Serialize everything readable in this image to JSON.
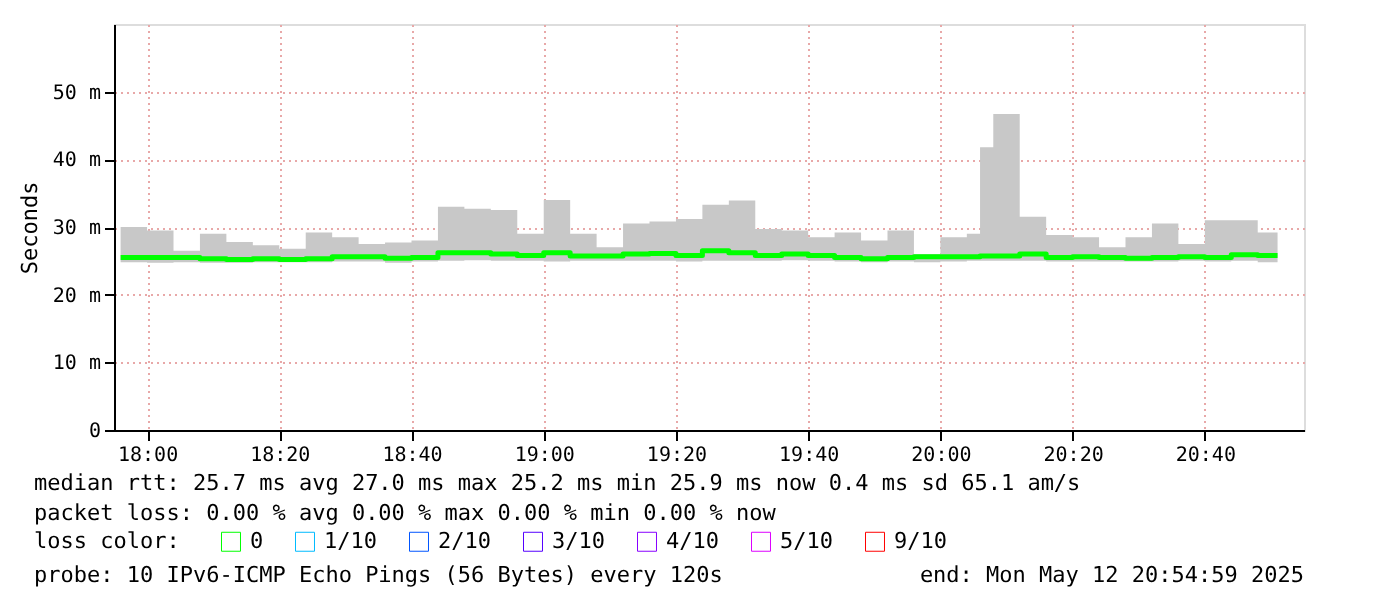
{
  "chart_data": {
    "type": "step",
    "ylabel": "Seconds",
    "x": [
      "2025-05-12T17:56",
      "2025-05-12T18:00",
      "2025-05-12T18:04",
      "2025-05-12T18:08",
      "2025-05-12T18:12",
      "2025-05-12T18:16",
      "2025-05-12T18:20",
      "2025-05-12T18:24",
      "2025-05-12T18:28",
      "2025-05-12T18:32",
      "2025-05-12T18:36",
      "2025-05-12T18:40",
      "2025-05-12T18:44",
      "2025-05-12T18:48",
      "2025-05-12T18:52",
      "2025-05-12T18:56",
      "2025-05-12T19:00",
      "2025-05-12T19:04",
      "2025-05-12T19:08",
      "2025-05-12T19:12",
      "2025-05-12T19:16",
      "2025-05-12T19:20",
      "2025-05-12T19:24",
      "2025-05-12T19:28",
      "2025-05-12T19:32",
      "2025-05-12T19:36",
      "2025-05-12T19:40",
      "2025-05-12T19:44",
      "2025-05-12T19:48",
      "2025-05-12T19:52",
      "2025-05-12T19:56",
      "2025-05-12T20:00",
      "2025-05-12T20:04",
      "2025-05-12T20:06",
      "2025-05-12T20:08",
      "2025-05-12T20:12",
      "2025-05-12T20:16",
      "2025-05-12T20:20",
      "2025-05-12T20:24",
      "2025-05-12T20:28",
      "2025-05-12T20:32",
      "2025-05-12T20:36",
      "2025-05-12T20:40",
      "2025-05-12T20:44",
      "2025-05-12T20:48",
      "2025-05-12T20:51"
    ],
    "series": [
      {
        "name": "0",
        "color": "#00ff00",
        "values": [
          25.5,
          25.5,
          25.5,
          25.3,
          25.2,
          25.3,
          25.2,
          25.3,
          25.6,
          25.6,
          25.4,
          25.5,
          26.2,
          26.2,
          26,
          25.8,
          26.2,
          25.7,
          25.7,
          26,
          26.1,
          25.8,
          26.5,
          26.2,
          25.8,
          26,
          25.8,
          25.5,
          25.3,
          25.5,
          25.6,
          25.6,
          25.6,
          25.7,
          25.7,
          26,
          25.5,
          25.6,
          25.5,
          25.4,
          25.5,
          25.6,
          25.5,
          25.9,
          25.8,
          25.8
        ],
        "lower": [
          24.8,
          24.7,
          24.8,
          24.7,
          24.7,
          24.8,
          24.8,
          24.8,
          24.9,
          24.9,
          24.7,
          24.9,
          25,
          25.1,
          25,
          25,
          24.9,
          25,
          25,
          25,
          25,
          24.9,
          25,
          25,
          25,
          25.1,
          25,
          24.9,
          24.8,
          24.9,
          24.8,
          24.9,
          25,
          25,
          25,
          25,
          24.9,
          24.9,
          24.9,
          24.9,
          24.9,
          25,
          24.9,
          25,
          24.8,
          24.8
        ],
        "upper": [
          30,
          29.5,
          26.5,
          29,
          27.8,
          27.3,
          26.8,
          29.2,
          28.5,
          27.5,
          27.7,
          28,
          33,
          32.7,
          32.5,
          29,
          34,
          29,
          27,
          30.5,
          30.8,
          31.2,
          33.3,
          33.9,
          29.7,
          29.5,
          28.5,
          29.2,
          28,
          29.5,
          26,
          28.5,
          29,
          41.8,
          46.7,
          31.5,
          28.8,
          28.5,
          27,
          28.5,
          30.5,
          27.5,
          31,
          31,
          29.2,
          29.2
        ]
      },
      {
        "name": "1/10",
        "color": "#00bbff",
        "values": [
          null,
          null,
          null,
          null,
          null,
          null,
          null,
          null,
          null,
          null,
          null,
          null,
          null,
          null,
          null,
          null,
          null,
          null,
          null,
          null,
          null,
          null,
          null,
          null,
          null,
          null,
          null,
          null,
          null,
          null,
          null,
          null,
          null,
          null,
          null,
          null,
          null,
          null,
          null,
          null,
          null,
          null,
          null,
          null,
          null,
          null
        ]
      },
      {
        "name": "2/10",
        "color": "#0055ff",
        "values": [
          null,
          null,
          null,
          null,
          null,
          null,
          null,
          null,
          null,
          null,
          null,
          null,
          null,
          null,
          null,
          null,
          null,
          null,
          null,
          null,
          null,
          null,
          null,
          null,
          null,
          null,
          null,
          null,
          null,
          null,
          null,
          null,
          null,
          null,
          null,
          null,
          null,
          null,
          null,
          null,
          null,
          null,
          null,
          null,
          null,
          null
        ]
      },
      {
        "name": "3/10",
        "color": "#5500ff",
        "values": [
          null,
          null,
          null,
          null,
          null,
          null,
          null,
          null,
          null,
          null,
          null,
          null,
          null,
          null,
          null,
          null,
          null,
          null,
          null,
          null,
          null,
          null,
          null,
          null,
          null,
          null,
          null,
          null,
          null,
          null,
          null,
          null,
          null,
          null,
          null,
          null,
          null,
          null,
          null,
          null,
          null,
          null,
          null,
          null,
          null,
          null
        ]
      },
      {
        "name": "4/10",
        "color": "#8800ff",
        "values": [
          null,
          null,
          null,
          null,
          null,
          null,
          null,
          null,
          null,
          null,
          null,
          null,
          null,
          null,
          null,
          null,
          null,
          null,
          null,
          null,
          null,
          null,
          null,
          null,
          null,
          null,
          null,
          null,
          null,
          null,
          null,
          null,
          null,
          null,
          null,
          null,
          null,
          null,
          null,
          null,
          null,
          null,
          null,
          null,
          null,
          null
        ]
      },
      {
        "name": "5/10",
        "color": "#dd00ff",
        "values": [
          null,
          null,
          null,
          null,
          null,
          null,
          null,
          null,
          null,
          null,
          null,
          null,
          null,
          null,
          null,
          null,
          null,
          null,
          null,
          null,
          null,
          null,
          null,
          null,
          null,
          null,
          null,
          null,
          null,
          null,
          null,
          null,
          null,
          null,
          null,
          null,
          null,
          null,
          null,
          null,
          null,
          null,
          null,
          null,
          null,
          null
        ]
      },
      {
        "name": "9/10",
        "color": "#ff0000",
        "values": [
          null,
          null,
          null,
          null,
          null,
          null,
          null,
          null,
          null,
          null,
          null,
          null,
          null,
          null,
          null,
          null,
          null,
          null,
          null,
          null,
          null,
          null,
          null,
          null,
          null,
          null,
          null,
          null,
          null,
          null,
          null,
          null,
          null,
          null,
          null,
          null,
          null,
          null,
          null,
          null,
          null,
          null,
          null,
          null,
          null,
          null
        ]
      }
    ],
    "legend": "bottom",
    "legend_title": "loss color:",
    "xlim": [
      "2025-05-12T17:55",
      "2025-05-12T20:55"
    ],
    "xticks": [
      {
        "value": "2025-05-12T18:00",
        "label": "18:00"
      },
      {
        "value": "2025-05-12T18:20",
        "label": "18:20"
      },
      {
        "value": "2025-05-12T18:40",
        "label": "18:40"
      },
      {
        "value": "2025-05-12T19:00",
        "label": "19:00"
      },
      {
        "value": "2025-05-12T19:20",
        "label": "19:20"
      },
      {
        "value": "2025-05-12T19:40",
        "label": "19:40"
      },
      {
        "value": "2025-05-12T20:00",
        "label": "20:00"
      },
      {
        "value": "2025-05-12T20:20",
        "label": "20:20"
      },
      {
        "value": "2025-05-12T20:40",
        "label": "20:40"
      }
    ],
    "ylim": [
      0,
      60
    ],
    "yticks": [
      0,
      {
        "value": 10,
        "label": "10 m"
      },
      {
        "value": 20,
        "label": "20 m"
      },
      {
        "value": 30,
        "label": "30 m"
      },
      {
        "value": 40,
        "label": "40 m"
      },
      {
        "value": 50,
        "label": "50 m"
      }
    ],
    "grid": true,
    "annotations": [
      "median rtt:  25.7 ms avg  27.0 ms max  25.2 ms min  25.9 ms now  0.4 ms sd  65.1   am/s",
      "packet loss: 0.00 % avg  0.00 % max  0.00 % min  0.00 % now",
      "probe:       10 IPv6-ICMP Echo Pings (56 Bytes) every 120s",
      "end: Mon May 12 20:54:59 2025"
    ]
  }
}
